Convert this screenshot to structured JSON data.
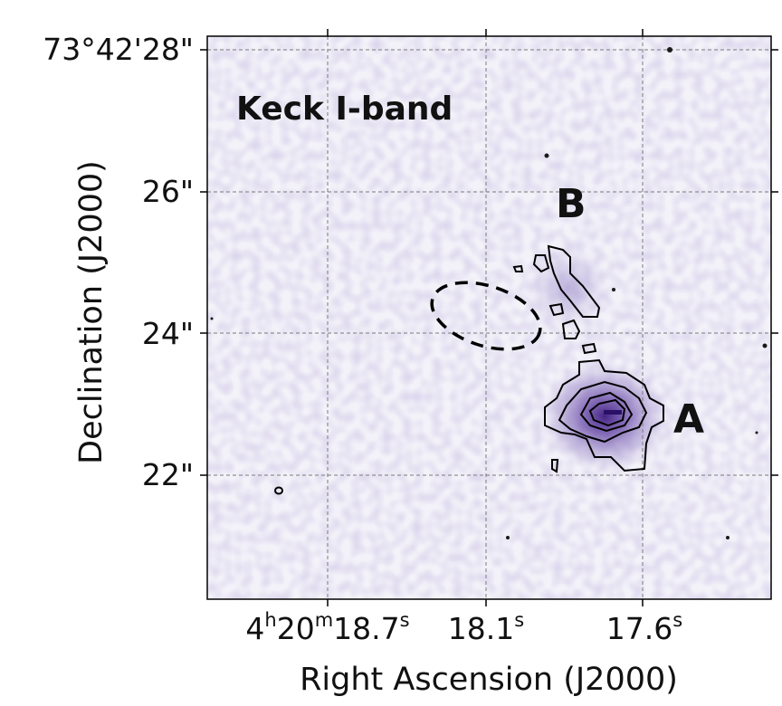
{
  "band_label": "Keck I-band",
  "sources": {
    "a": "A",
    "b": "B"
  },
  "dec_ticks": {
    "t28": "73°42'28\"",
    "t26": "26\"",
    "t24": "24\"",
    "t22": "22\""
  },
  "ra_ticks": {
    "t187": {
      "hours": "4",
      "h": "h",
      "minutes": "20",
      "m": "m",
      "seconds": "18.7",
      "s": "s"
    },
    "t181": {
      "seconds": "18.1",
      "s": "s"
    },
    "t176": {
      "seconds": "17.6",
      "s": "s"
    }
  },
  "xlabel": "Right Ascension (J2000)",
  "ylabel": "Declination (J2000)",
  "colors": {
    "background": "#f4f3f9",
    "emission": "#5b3a99",
    "contour": "#000000",
    "grid": "#7a7a7a"
  }
}
